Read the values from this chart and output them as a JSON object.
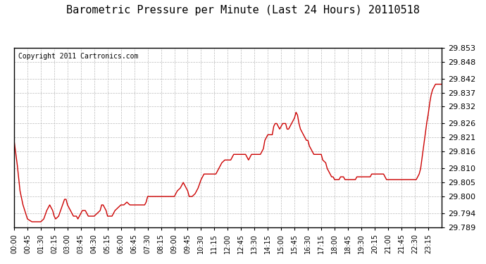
{
  "title": "Barometric Pressure per Minute (Last 24 Hours) 20110518",
  "copyright": "Copyright 2011 Cartronics.com",
  "line_color": "#cc0000",
  "background_color": "#ffffff",
  "grid_color": "#bbbbbb",
  "ylim": [
    29.789,
    29.853
  ],
  "yticks": [
    29.789,
    29.794,
    29.8,
    29.805,
    29.81,
    29.816,
    29.821,
    29.826,
    29.832,
    29.837,
    29.842,
    29.848,
    29.853
  ],
  "xtick_positions": [
    0,
    45,
    90,
    135,
    180,
    225,
    270,
    315,
    360,
    405,
    450,
    495,
    540,
    585,
    630,
    675,
    720,
    765,
    810,
    855,
    900,
    945,
    990,
    1035,
    1080,
    1125,
    1170,
    1215,
    1260,
    1305,
    1350,
    1395
  ],
  "xtick_labels": [
    "00:00",
    "00:45",
    "01:30",
    "02:15",
    "03:00",
    "03:45",
    "04:30",
    "05:15",
    "06:00",
    "06:45",
    "07:30",
    "08:15",
    "09:00",
    "09:45",
    "10:30",
    "11:15",
    "12:00",
    "12:45",
    "13:30",
    "14:15",
    "15:00",
    "15:45",
    "16:30",
    "17:15",
    "18:00",
    "18:45",
    "19:30",
    "20:15",
    "21:00",
    "21:45",
    "22:30",
    "23:15"
  ],
  "keypoints": [
    [
      0,
      29.82
    ],
    [
      10,
      29.812
    ],
    [
      20,
      29.802
    ],
    [
      30,
      29.797
    ],
    [
      45,
      29.792
    ],
    [
      60,
      29.791
    ],
    [
      75,
      29.791
    ],
    [
      90,
      29.791
    ],
    [
      100,
      29.792
    ],
    [
      110,
      29.795
    ],
    [
      120,
      29.797
    ],
    [
      130,
      29.795
    ],
    [
      135,
      29.793
    ],
    [
      140,
      29.792
    ],
    [
      150,
      29.793
    ],
    [
      160,
      29.796
    ],
    [
      170,
      29.799
    ],
    [
      175,
      29.799
    ],
    [
      180,
      29.797
    ],
    [
      190,
      29.795
    ],
    [
      200,
      29.793
    ],
    [
      210,
      29.793
    ],
    [
      215,
      29.792
    ],
    [
      220,
      29.793
    ],
    [
      230,
      29.795
    ],
    [
      240,
      29.795
    ],
    [
      250,
      29.793
    ],
    [
      260,
      29.793
    ],
    [
      270,
      29.793
    ],
    [
      280,
      29.794
    ],
    [
      290,
      29.795
    ],
    [
      295,
      29.797
    ],
    [
      300,
      29.797
    ],
    [
      310,
      29.795
    ],
    [
      315,
      29.793
    ],
    [
      320,
      29.793
    ],
    [
      330,
      29.793
    ],
    [
      340,
      29.795
    ],
    [
      350,
      29.796
    ],
    [
      360,
      29.797
    ],
    [
      370,
      29.797
    ],
    [
      380,
      29.798
    ],
    [
      390,
      29.797
    ],
    [
      400,
      29.797
    ],
    [
      405,
      29.797
    ],
    [
      410,
      29.797
    ],
    [
      420,
      29.797
    ],
    [
      430,
      29.797
    ],
    [
      440,
      29.797
    ],
    [
      445,
      29.798
    ],
    [
      450,
      29.8
    ],
    [
      460,
      29.8
    ],
    [
      465,
      29.8
    ],
    [
      470,
      29.8
    ],
    [
      480,
      29.8
    ],
    [
      490,
      29.8
    ],
    [
      495,
      29.8
    ],
    [
      500,
      29.8
    ],
    [
      510,
      29.8
    ],
    [
      515,
      29.8
    ],
    [
      520,
      29.8
    ],
    [
      530,
      29.8
    ],
    [
      540,
      29.8
    ],
    [
      550,
      29.802
    ],
    [
      560,
      29.803
    ],
    [
      570,
      29.805
    ],
    [
      575,
      29.804
    ],
    [
      580,
      29.803
    ],
    [
      585,
      29.802
    ],
    [
      590,
      29.8
    ],
    [
      595,
      29.8
    ],
    [
      600,
      29.8
    ],
    [
      610,
      29.801
    ],
    [
      620,
      29.803
    ],
    [
      630,
      29.806
    ],
    [
      640,
      29.808
    ],
    [
      645,
      29.808
    ],
    [
      650,
      29.808
    ],
    [
      660,
      29.808
    ],
    [
      665,
      29.808
    ],
    [
      670,
      29.808
    ],
    [
      675,
      29.808
    ],
    [
      680,
      29.808
    ],
    [
      690,
      29.81
    ],
    [
      700,
      29.812
    ],
    [
      710,
      29.813
    ],
    [
      720,
      29.813
    ],
    [
      730,
      29.813
    ],
    [
      740,
      29.815
    ],
    [
      745,
      29.815
    ],
    [
      750,
      29.815
    ],
    [
      760,
      29.815
    ],
    [
      765,
      29.815
    ],
    [
      770,
      29.815
    ],
    [
      775,
      29.815
    ],
    [
      780,
      29.815
    ],
    [
      790,
      29.813
    ],
    [
      800,
      29.815
    ],
    [
      805,
      29.815
    ],
    [
      810,
      29.815
    ],
    [
      820,
      29.815
    ],
    [
      830,
      29.815
    ],
    [
      840,
      29.817
    ],
    [
      845,
      29.82
    ],
    [
      855,
      29.822
    ],
    [
      860,
      29.822
    ],
    [
      865,
      29.822
    ],
    [
      870,
      29.822
    ],
    [
      875,
      29.825
    ],
    [
      880,
      29.826
    ],
    [
      885,
      29.826
    ],
    [
      890,
      29.825
    ],
    [
      895,
      29.824
    ],
    [
      900,
      29.825
    ],
    [
      905,
      29.826
    ],
    [
      910,
      29.826
    ],
    [
      915,
      29.826
    ],
    [
      920,
      29.824
    ],
    [
      925,
      29.824
    ],
    [
      930,
      29.825
    ],
    [
      935,
      29.826
    ],
    [
      940,
      29.827
    ],
    [
      945,
      29.828
    ],
    [
      950,
      29.83
    ],
    [
      955,
      29.829
    ],
    [
      960,
      29.826
    ],
    [
      965,
      29.824
    ],
    [
      970,
      29.823
    ],
    [
      975,
      29.822
    ],
    [
      985,
      29.82
    ],
    [
      990,
      29.82
    ],
    [
      995,
      29.818
    ],
    [
      1000,
      29.817
    ],
    [
      1005,
      29.816
    ],
    [
      1010,
      29.815
    ],
    [
      1015,
      29.815
    ],
    [
      1020,
      29.815
    ],
    [
      1025,
      29.815
    ],
    [
      1030,
      29.815
    ],
    [
      1035,
      29.815
    ],
    [
      1040,
      29.813
    ],
    [
      1050,
      29.812
    ],
    [
      1055,
      29.81
    ],
    [
      1060,
      29.809
    ],
    [
      1065,
      29.808
    ],
    [
      1070,
      29.807
    ],
    [
      1075,
      29.807
    ],
    [
      1080,
      29.806
    ],
    [
      1085,
      29.806
    ],
    [
      1090,
      29.806
    ],
    [
      1095,
      29.806
    ],
    [
      1100,
      29.807
    ],
    [
      1105,
      29.807
    ],
    [
      1110,
      29.807
    ],
    [
      1115,
      29.806
    ],
    [
      1120,
      29.806
    ],
    [
      1125,
      29.806
    ],
    [
      1130,
      29.806
    ],
    [
      1135,
      29.806
    ],
    [
      1140,
      29.806
    ],
    [
      1145,
      29.806
    ],
    [
      1150,
      29.806
    ],
    [
      1155,
      29.807
    ],
    [
      1160,
      29.807
    ],
    [
      1165,
      29.807
    ],
    [
      1170,
      29.807
    ],
    [
      1175,
      29.807
    ],
    [
      1180,
      29.807
    ],
    [
      1185,
      29.807
    ],
    [
      1190,
      29.807
    ],
    [
      1195,
      29.807
    ],
    [
      1200,
      29.807
    ],
    [
      1205,
      29.808
    ],
    [
      1210,
      29.808
    ],
    [
      1215,
      29.808
    ],
    [
      1220,
      29.808
    ],
    [
      1225,
      29.808
    ],
    [
      1230,
      29.808
    ],
    [
      1235,
      29.808
    ],
    [
      1240,
      29.808
    ],
    [
      1245,
      29.808
    ],
    [
      1250,
      29.807
    ],
    [
      1255,
      29.806
    ],
    [
      1260,
      29.806
    ],
    [
      1265,
      29.806
    ],
    [
      1270,
      29.806
    ],
    [
      1275,
      29.806
    ],
    [
      1280,
      29.806
    ],
    [
      1285,
      29.806
    ],
    [
      1290,
      29.806
    ],
    [
      1295,
      29.806
    ],
    [
      1300,
      29.806
    ],
    [
      1305,
      29.806
    ],
    [
      1310,
      29.806
    ],
    [
      1315,
      29.806
    ],
    [
      1320,
      29.806
    ],
    [
      1325,
      29.806
    ],
    [
      1330,
      29.806
    ],
    [
      1335,
      29.806
    ],
    [
      1340,
      29.806
    ],
    [
      1345,
      29.806
    ],
    [
      1350,
      29.806
    ],
    [
      1355,
      29.806
    ],
    [
      1360,
      29.807
    ],
    [
      1365,
      29.808
    ],
    [
      1370,
      29.81
    ],
    [
      1375,
      29.814
    ],
    [
      1380,
      29.818
    ],
    [
      1385,
      29.822
    ],
    [
      1390,
      29.826
    ],
    [
      1395,
      29.829
    ],
    [
      1400,
      29.833
    ],
    [
      1405,
      29.836
    ],
    [
      1410,
      29.838
    ],
    [
      1415,
      29.839
    ],
    [
      1420,
      29.84
    ],
    [
      1425,
      29.84
    ],
    [
      1430,
      29.84
    ],
    [
      1435,
      29.84
    ],
    [
      1440,
      29.84
    ]
  ]
}
